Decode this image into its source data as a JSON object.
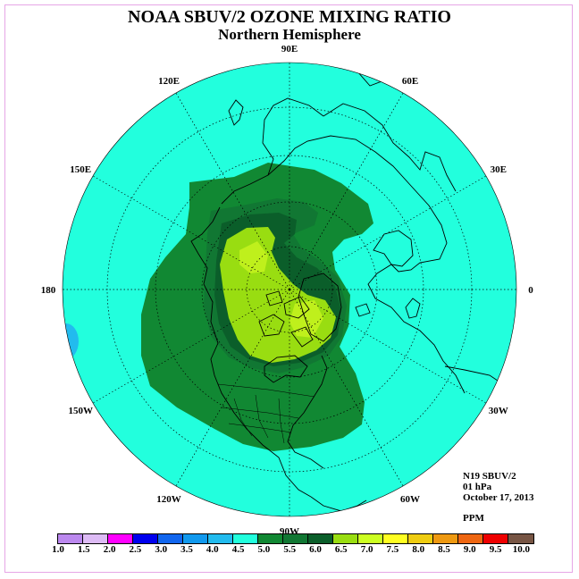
{
  "title": "NOAA SBUV/2 OZONE MIXING RATIO",
  "subtitle": "Northern Hemisphere",
  "longitude_labels": [
    {
      "text": "90E",
      "lon": 90
    },
    {
      "text": "60E",
      "lon": 60
    },
    {
      "text": "30E",
      "lon": 30
    },
    {
      "text": "0",
      "lon": 0
    },
    {
      "text": "30W",
      "lon": -30
    },
    {
      "text": "60W",
      "lon": -60
    },
    {
      "text": "90W",
      "lon": -90
    },
    {
      "text": "120W",
      "lon": -120
    },
    {
      "text": "150W",
      "lon": -150
    },
    {
      "text": "180",
      "lon": 180
    },
    {
      "text": "150E",
      "lon": 150
    },
    {
      "text": "120E",
      "lon": 120
    }
  ],
  "info": {
    "instrument": "N19 SBUV/2",
    "level": "01 hPa",
    "date": "October 17, 2013"
  },
  "units": "PPM",
  "colorbar": {
    "colors": [
      "#bb88ee",
      "#ddbbf5",
      "#ff00ff",
      "#0000ee",
      "#1166ee",
      "#1199ee",
      "#22bbee",
      "#22ffdd",
      "#118833",
      "#117733",
      "#0b5e2a",
      "#99dd11",
      "#ccff22",
      "#ffff22",
      "#eecc11",
      "#ee9911",
      "#ee6611",
      "#ee0000",
      "#775544"
    ],
    "ticks": [
      "1.0",
      "1.5",
      "2.0",
      "2.5",
      "3.0",
      "3.5",
      "4.0",
      "4.5",
      "5.0",
      "5.5",
      "6.0",
      "6.5",
      "7.0",
      "7.5",
      "8.0",
      "8.5",
      "9.0",
      "9.5",
      "10.0"
    ]
  },
  "contour_levels_ppm": [
    5.0,
    5.5,
    6.0,
    6.5
  ]
}
